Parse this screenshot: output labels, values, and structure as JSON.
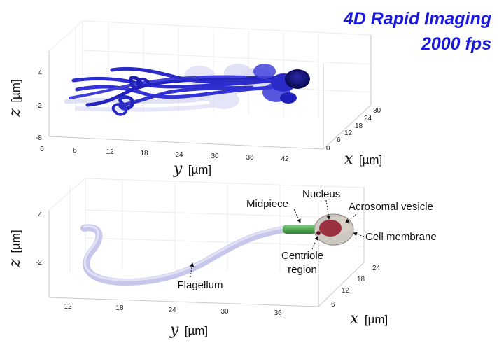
{
  "title": {
    "line1": "4D Rapid Imaging",
    "line2": "2000 fps",
    "color": "#1a1adf"
  },
  "top_panel": {
    "z_ticks": [
      "4",
      "-2",
      "-8"
    ],
    "y_ticks": [
      "0",
      "6",
      "12",
      "18",
      "24",
      "30",
      "36",
      "42"
    ],
    "x_ticks": [
      "0",
      "6",
      "12",
      "18",
      "24",
      "30"
    ],
    "z_label": {
      "var": "z",
      "unit": "[µm]"
    },
    "y_label": {
      "var": "y",
      "unit": "[µm]"
    },
    "x_label": {
      "var": "x",
      "unit": "[µm]"
    },
    "flagellum_color": "#2b2bd0"
  },
  "bottom_panel": {
    "z_ticks": [
      "4",
      "-2"
    ],
    "y_ticks": [
      "12",
      "18",
      "24",
      "30",
      "36"
    ],
    "x_ticks": [
      "6",
      "12",
      "18",
      "24"
    ],
    "z_label": {
      "var": "z",
      "unit": "[µm]"
    },
    "y_label": {
      "var": "y",
      "unit": "[µm]"
    },
    "x_label": {
      "var": "x",
      "unit": "[µm]"
    },
    "annotations": {
      "midpiece": "Midpiece",
      "nucleus": "Nucleus",
      "acrosomal_vesicle": "Acrosomal vesicle",
      "cell_membrane": "Cell membrane",
      "centriole_line1": "Centriole",
      "centriole_line2": "region",
      "flagellum": "Flagellum"
    },
    "colors": {
      "flagellum": "#c7c7ec",
      "midpiece": "#4fa84f",
      "nucleus": "#9a3040",
      "membrane": "#c9c4bf"
    }
  }
}
